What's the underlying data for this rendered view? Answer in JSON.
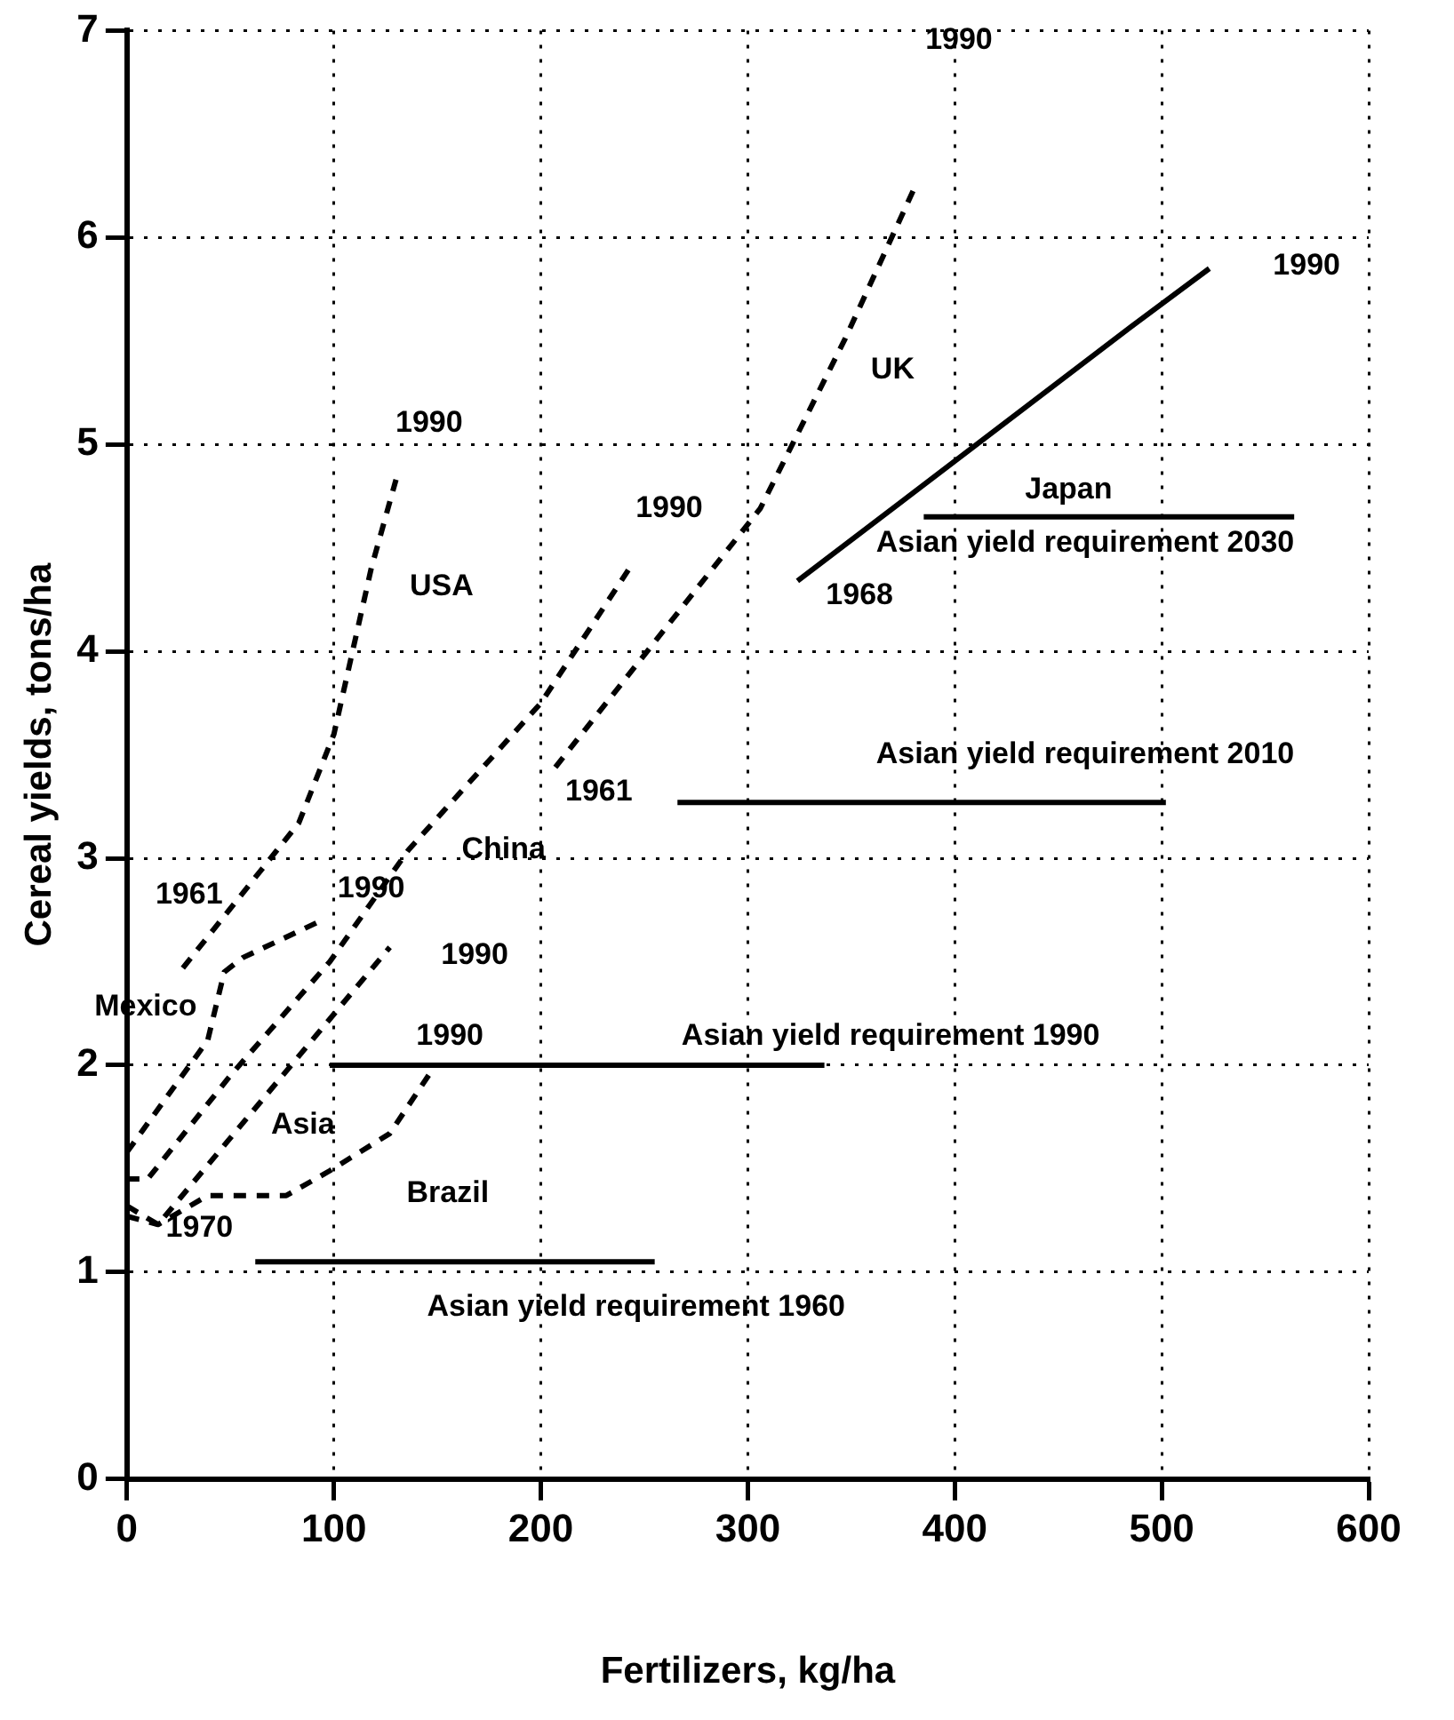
{
  "chart_data": {
    "type": "line",
    "xlabel": "Fertilizers, kg/ha",
    "ylabel": "Cereal yields, tons/ha",
    "xlim": [
      0,
      600
    ],
    "xticks": [
      0,
      100,
      200,
      300,
      400,
      500,
      600
    ],
    "ylim": [
      0,
      7
    ],
    "yticks": [
      0,
      1,
      2,
      3,
      4,
      5,
      6,
      7
    ],
    "grid": true,
    "marker": "none",
    "series": [
      {
        "color": "#000000",
        "line_style": "dashed",
        "x": [
          27,
          83,
          100,
          109,
          118,
          130
        ],
        "values": [
          2.47,
          3.17,
          3.6,
          4.0,
          4.4,
          4.83
        ]
      },
      {
        "color": "#000000",
        "line_style": "dashed",
        "x": [
          0,
          39,
          47,
          56,
          92
        ],
        "values": [
          1.58,
          2.12,
          2.45,
          2.52,
          2.69
        ]
      },
      {
        "color": "#000000",
        "line_style": "dashed",
        "x": [
          0,
          15,
          127
        ],
        "values": [
          1.32,
          1.23,
          2.57
        ]
      },
      {
        "color": "#000000",
        "line_style": "dashed",
        "x": [
          0,
          10,
          50,
          98,
          136,
          200,
          244
        ],
        "values": [
          1.45,
          1.45,
          1.95,
          2.5,
          3.04,
          3.75,
          4.42
        ]
      },
      {
        "color": "#000000",
        "line_style": "dashed",
        "x": [
          207,
          306,
          347,
          381
        ],
        "values": [
          3.44,
          4.69,
          5.51,
          6.25
        ]
      },
      {
        "color": "#000000",
        "line_style": "solid",
        "x": [
          324,
          488,
          523
        ],
        "values": [
          4.34,
          5.59,
          5.85
        ]
      },
      {
        "color": "#000000",
        "line_style": "dashed",
        "x": [
          0,
          15,
          39,
          77,
          98,
          127,
          147
        ],
        "values": [
          1.27,
          1.23,
          1.37,
          1.37,
          1.49,
          1.67,
          1.97
        ]
      },
      {
        "color": "#000000",
        "line_style": "solid",
        "x": [
          62,
          255
        ],
        "values": [
          1.05,
          1.05
        ]
      },
      {
        "color": "#000000",
        "line_style": "solid",
        "x": [
          98,
          337
        ],
        "values": [
          2.0,
          2.0
        ]
      },
      {
        "color": "#000000",
        "line_style": "solid",
        "x": [
          266,
          502
        ],
        "values": [
          3.27,
          3.27
        ]
      },
      {
        "color": "#000000",
        "line_style": "solid",
        "x": [
          385,
          564
        ],
        "values": [
          4.65,
          4.65
        ]
      }
    ],
    "annotations": [
      "1990",
      "USA",
      "1990",
      "UK",
      "1990",
      "Japan",
      "Asian yield requirement 2030",
      "1968",
      "1990",
      "Asian yield requirement 2010",
      "1961",
      "China",
      "1961",
      "1990",
      "1990",
      "Mexico",
      "1990",
      "Asian yield requirement 1990",
      "Asia",
      "Brazil",
      "1970",
      "Asian yield requirement 1960"
    ]
  }
}
